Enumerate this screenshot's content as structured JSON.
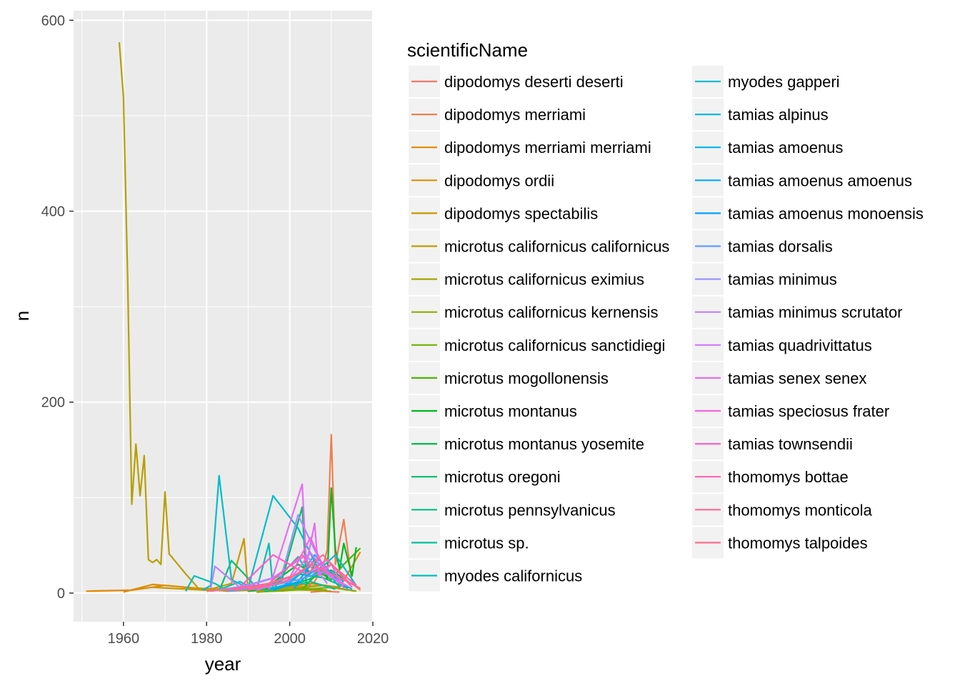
{
  "chart_data": {
    "type": "line",
    "xlabel": "year",
    "ylabel": "n",
    "xlim": [
      1948,
      2020
    ],
    "ylim": [
      -30,
      610
    ],
    "xticks": [
      1960,
      1980,
      2000,
      2020
    ],
    "yticks": [
      0,
      200,
      400,
      600
    ],
    "xtick_labels": [
      "1960",
      "1980",
      "2000",
      "2020"
    ],
    "ytick_labels": [
      "0",
      "200",
      "400",
      "600"
    ],
    "grid": true,
    "legend": {
      "title": "scientificName",
      "position": "right",
      "columns": 2
    },
    "series": [
      {
        "name": "dipodomys deserti deserti",
        "color": "#F8766D",
        "x": [
          2005,
          2008,
          2012
        ],
        "y": [
          1,
          2,
          1
        ]
      },
      {
        "name": "dipodomys merriami",
        "color": "#F07E4E",
        "x": [
          1998,
          2004,
          2006,
          2008,
          2009,
          2010,
          2011,
          2013,
          2015,
          2017
        ],
        "y": [
          2,
          6,
          12,
          28,
          45,
          166,
          30,
          77,
          10,
          3
        ]
      },
      {
        "name": "dipodomys merriami merriami",
        "color": "#E58700",
        "x": [
          1951,
          1962,
          1970,
          1980,
          1995,
          2005,
          2012,
          2017
        ],
        "y": [
          2,
          3,
          8,
          4,
          3,
          10,
          6,
          43
        ]
      },
      {
        "name": "dipodomys ordii",
        "color": "#D89000",
        "x": [
          1960,
          1967,
          1978,
          1990,
          2008,
          2016
        ],
        "y": [
          1,
          9,
          5,
          3,
          8,
          2
        ]
      },
      {
        "name": "dipodomys spectabilis",
        "color": "#C99800",
        "x": [
          1967,
          1980,
          1986,
          1989,
          1990,
          1995,
          2005
        ],
        "y": [
          6,
          3,
          10,
          57,
          2,
          5,
          3
        ]
      },
      {
        "name": "microtus californicus californicus",
        "color": "#B79F00",
        "x": [
          1959,
          1960,
          1961,
          1962,
          1963,
          1964,
          1965,
          1966,
          1967,
          1968,
          1969,
          1970,
          1971,
          1975,
          1978,
          1985,
          1995,
          2005,
          2010
        ],
        "y": [
          577,
          520,
          330,
          93,
          156,
          102,
          144,
          35,
          32,
          35,
          30,
          106,
          41,
          20,
          5,
          2,
          4,
          3,
          2
        ]
      },
      {
        "name": "microtus californicus eximius",
        "color": "#A3A500",
        "x": [
          1990,
          2000,
          2008,
          2014
        ],
        "y": [
          2,
          4,
          8,
          3
        ]
      },
      {
        "name": "microtus californicus kernensis",
        "color": "#8EAB00",
        "x": [
          1992,
          2001,
          2010,
          2016
        ],
        "y": [
          1,
          3,
          6,
          2
        ]
      },
      {
        "name": "microtus californicus sanctidiegi",
        "color": "#73B000",
        "x": [
          1995,
          2003,
          2009
        ],
        "y": [
          2,
          5,
          3
        ]
      },
      {
        "name": "microtus mogollonensis",
        "color": "#4EB400",
        "x": [
          2003,
          2007,
          2010,
          2013,
          2017
        ],
        "y": [
          4,
          22,
          14,
          30,
          47
        ]
      },
      {
        "name": "microtus montanus",
        "color": "#00B81F",
        "x": [
          1985,
          1995,
          2002,
          2005,
          2007,
          2009,
          2010,
          2011,
          2012,
          2013,
          2015,
          2016
        ],
        "y": [
          3,
          8,
          30,
          22,
          38,
          15,
          110,
          45,
          25,
          52,
          18,
          48
        ]
      },
      {
        "name": "microtus montanus yosemite",
        "color": "#00BB4E",
        "x": [
          1990,
          2000,
          2005,
          2010,
          2015
        ],
        "y": [
          2,
          8,
          15,
          24,
          9
        ]
      },
      {
        "name": "microtus oregoni",
        "color": "#00BE6C",
        "x": [
          1983,
          1986,
          1992,
          1998,
          2003,
          2004,
          2008,
          2012
        ],
        "y": [
          2,
          34,
          6,
          12,
          90,
          8,
          30,
          11
        ]
      },
      {
        "name": "microtus pennsylvanicus",
        "color": "#00C087",
        "x": [
          1990,
          1996,
          2002,
          2008,
          2014
        ],
        "y": [
          3,
          10,
          20,
          16,
          5
        ]
      },
      {
        "name": "microtus sp.",
        "color": "#00C09F",
        "x": [
          1994,
          1998,
          2005,
          2011
        ],
        "y": [
          2,
          6,
          12,
          4
        ]
      },
      {
        "name": "myodes californicus",
        "color": "#00BFB6",
        "x": [
          1975,
          1977,
          1982,
          1984,
          1988,
          1992,
          1995,
          1996,
          1999,
          2002,
          2005,
          2008,
          2012
        ],
        "y": [
          2,
          18,
          10,
          5,
          12,
          3,
          52,
          3,
          24,
          38,
          17,
          28,
          6
        ]
      },
      {
        "name": "myodes gapperi",
        "color": "#00BCCB",
        "x": [
          1979,
          1981,
          1983,
          1986,
          1990,
          1996,
          2002,
          2007,
          2011,
          2016
        ],
        "y": [
          3,
          8,
          123,
          14,
          5,
          102,
          68,
          24,
          40,
          8
        ]
      },
      {
        "name": "tamias alpinus",
        "color": "#00B8DE",
        "x": [
          1995,
          2000,
          2005,
          2010,
          2014
        ],
        "y": [
          4,
          10,
          30,
          18,
          6
        ]
      },
      {
        "name": "tamias amoenus",
        "color": "#00B2EE",
        "x": [
          1998,
          2003,
          2006,
          2009,
          2013
        ],
        "y": [
          6,
          22,
          40,
          25,
          12
        ]
      },
      {
        "name": "tamias amoenus amoenus",
        "color": "#00ABFB",
        "x": [
          2001,
          2004,
          2007,
          2011,
          2015
        ],
        "y": [
          5,
          18,
          26,
          14,
          4
        ]
      },
      {
        "name": "tamias amoenus monoensis",
        "color": "#00A2FF",
        "x": [
          1996,
          2002,
          2006,
          2010,
          2014
        ],
        "y": [
          3,
          12,
          35,
          20,
          5
        ]
      },
      {
        "name": "tamias dorsalis",
        "color": "#619CFF",
        "x": [
          1985,
          1994,
          2002,
          2008,
          2013
        ],
        "y": [
          2,
          6,
          14,
          22,
          8
        ]
      },
      {
        "name": "tamias minimus",
        "color": "#9C93FF",
        "x": [
          1981,
          1990,
          1998,
          2002,
          2006,
          2010
        ],
        "y": [
          2,
          8,
          18,
          82,
          45,
          15
        ]
      },
      {
        "name": "tamias minimus scrutator",
        "color": "#B983FF",
        "x": [
          1981,
          1982,
          1988,
          1996,
          2004,
          2009
        ],
        "y": [
          5,
          28,
          6,
          16,
          40,
          10
        ]
      },
      {
        "name": "tamias quadrivittatus",
        "color": "#D277FF",
        "x": [
          1992,
          2000,
          2005,
          2009,
          2014
        ],
        "y": [
          3,
          14,
          42,
          20,
          7
        ]
      },
      {
        "name": "tamias senex senex",
        "color": "#E66DF2",
        "x": [
          1995,
          2003,
          2004,
          2006,
          2007,
          2010,
          2013
        ],
        "y": [
          4,
          114,
          30,
          73,
          18,
          30,
          5
        ]
      },
      {
        "name": "tamias speciosus frater",
        "color": "#F565E3",
        "x": [
          1990,
          2000,
          2005,
          2008,
          2012
        ],
        "y": [
          4,
          16,
          58,
          28,
          10
        ]
      },
      {
        "name": "tamias townsendii",
        "color": "#FF61CC",
        "x": [
          1987,
          1996,
          2004,
          2009,
          2015
        ],
        "y": [
          2,
          40,
          20,
          35,
          6
        ]
      },
      {
        "name": "thomomys bottae",
        "color": "#FF62B4",
        "x": [
          1985,
          1995,
          2003,
          2006,
          2010,
          2016
        ],
        "y": [
          4,
          10,
          40,
          22,
          30,
          8
        ]
      },
      {
        "name": "thomomys monticola",
        "color": "#FF6899",
        "x": [
          1990,
          1999,
          2005,
          2011,
          2017
        ],
        "y": [
          3,
          12,
          30,
          18,
          5
        ]
      },
      {
        "name": "thomomys talpoides",
        "color": "#FF6C90",
        "x": [
          1980,
          1992,
          2002,
          2008,
          2014
        ],
        "y": [
          2,
          6,
          20,
          40,
          12
        ]
      }
    ]
  }
}
